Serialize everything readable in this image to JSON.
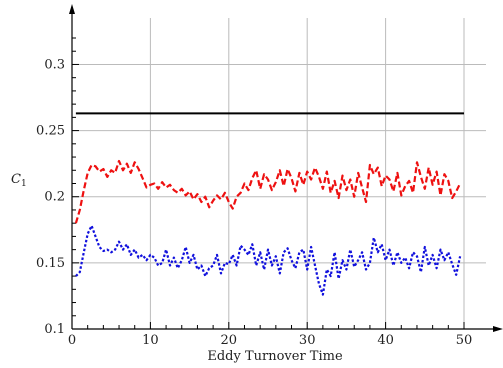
{
  "chart_data": {
    "type": "line",
    "xlabel": "Eddy Turnover Time",
    "ylabel": "C",
    "ylabel_subscript": "1",
    "xlim": [
      0,
      50
    ],
    "ylim": [
      0.1,
      0.32
    ],
    "xticks": [
      0,
      10,
      20,
      30,
      40,
      50
    ],
    "xtick_labels": [
      "0",
      "10",
      "20",
      "30",
      "40",
      "50"
    ],
    "yticks": [
      0.1,
      0.15,
      0.2,
      0.25,
      0.3
    ],
    "ytick_labels": [
      "0.1",
      "0.15",
      "0.2",
      "0.25",
      "0.3"
    ],
    "grid": true,
    "colors": {
      "black": "#000000",
      "red": "#ee1111",
      "blue": "#1111dd",
      "grid": "#bbbbbb"
    },
    "series": [
      {
        "style": "solid",
        "color": "black",
        "x": [
          0.5,
          50
        ],
        "y": [
          0.263,
          0.263
        ]
      },
      {
        "style": "dashed",
        "color": "red",
        "x": [
          0.5,
          1,
          1.5,
          2,
          2.5,
          3,
          3.5,
          4,
          4.5,
          5,
          5.5,
          6,
          6.5,
          7,
          7.5,
          8,
          8.5,
          9,
          9.5,
          10,
          10.5,
          11,
          11.5,
          12,
          12.5,
          13,
          13.5,
          14,
          14.5,
          15,
          15.5,
          16,
          16.5,
          17,
          17.5,
          18,
          18.5,
          19,
          19.5,
          20,
          20.5,
          21,
          21.5,
          22,
          22.5,
          23,
          23.5,
          24,
          24.5,
          25,
          25.5,
          26,
          26.5,
          27,
          27.5,
          28,
          28.5,
          29,
          29.5,
          30,
          30.5,
          31,
          31.5,
          32,
          32.5,
          33,
          33.5,
          34,
          34.5,
          35,
          35.5,
          36,
          36.5,
          37,
          37.5,
          38,
          38.5,
          39,
          39.5,
          40,
          40.5,
          41,
          41.5,
          42,
          42.5,
          43,
          43.5,
          44,
          44.5,
          45,
          45.5,
          46,
          46.5,
          47,
          47.5,
          48,
          48.5,
          49,
          49.5
        ],
        "y": [
          0.18,
          0.19,
          0.205,
          0.218,
          0.224,
          0.223,
          0.219,
          0.221,
          0.215,
          0.22,
          0.218,
          0.227,
          0.22,
          0.225,
          0.218,
          0.226,
          0.221,
          0.214,
          0.207,
          0.209,
          0.21,
          0.206,
          0.211,
          0.207,
          0.209,
          0.205,
          0.203,
          0.206,
          0.201,
          0.204,
          0.198,
          0.202,
          0.196,
          0.2,
          0.192,
          0.197,
          0.201,
          0.198,
          0.203,
          0.196,
          0.191,
          0.2,
          0.203,
          0.21,
          0.205,
          0.214,
          0.22,
          0.206,
          0.217,
          0.213,
          0.205,
          0.211,
          0.22,
          0.208,
          0.221,
          0.214,
          0.204,
          0.218,
          0.209,
          0.219,
          0.213,
          0.222,
          0.215,
          0.206,
          0.219,
          0.203,
          0.212,
          0.199,
          0.216,
          0.205,
          0.213,
          0.2,
          0.218,
          0.207,
          0.196,
          0.224,
          0.217,
          0.222,
          0.208,
          0.216,
          0.213,
          0.204,
          0.218,
          0.201,
          0.208,
          0.212,
          0.203,
          0.226,
          0.215,
          0.206,
          0.222,
          0.209,
          0.219,
          0.201,
          0.217,
          0.212,
          0.199,
          0.204,
          0.21
        ]
      },
      {
        "style": "dotted",
        "color": "blue",
        "x": [
          0.5,
          1,
          1.5,
          2,
          2.5,
          3,
          3.5,
          4,
          4.5,
          5,
          5.5,
          6,
          6.5,
          7,
          7.5,
          8,
          8.5,
          9,
          9.5,
          10,
          10.5,
          11,
          11.5,
          12,
          12.5,
          13,
          13.5,
          14,
          14.5,
          15,
          15.5,
          16,
          16.5,
          17,
          17.5,
          18,
          18.5,
          19,
          19.5,
          20,
          20.5,
          21,
          21.5,
          22,
          22.5,
          23,
          23.5,
          24,
          24.5,
          25,
          25.5,
          26,
          26.5,
          27,
          27.5,
          28,
          28.5,
          29,
          29.5,
          30,
          30.5,
          31,
          31.5,
          32,
          32.5,
          33,
          33.5,
          34,
          34.5,
          35,
          35.5,
          36,
          36.5,
          37,
          37.5,
          38,
          38.5,
          39,
          39.5,
          40,
          40.5,
          41,
          41.5,
          42,
          42.5,
          43,
          43.5,
          44,
          44.5,
          45,
          45.5,
          46,
          46.5,
          47,
          47.5,
          48,
          48.5,
          49,
          49.5
        ],
        "y": [
          0.14,
          0.143,
          0.158,
          0.172,
          0.178,
          0.17,
          0.162,
          0.159,
          0.16,
          0.158,
          0.16,
          0.166,
          0.16,
          0.164,
          0.156,
          0.16,
          0.154,
          0.156,
          0.152,
          0.156,
          0.154,
          0.148,
          0.15,
          0.16,
          0.148,
          0.154,
          0.146,
          0.152,
          0.162,
          0.15,
          0.156,
          0.145,
          0.148,
          0.14,
          0.146,
          0.148,
          0.156,
          0.142,
          0.15,
          0.149,
          0.156,
          0.148,
          0.163,
          0.16,
          0.156,
          0.164,
          0.148,
          0.158,
          0.145,
          0.16,
          0.148,
          0.155,
          0.142,
          0.158,
          0.161,
          0.152,
          0.146,
          0.158,
          0.16,
          0.145,
          0.162,
          0.148,
          0.134,
          0.126,
          0.145,
          0.14,
          0.158,
          0.138,
          0.152,
          0.145,
          0.16,
          0.147,
          0.152,
          0.158,
          0.145,
          0.15,
          0.169,
          0.158,
          0.164,
          0.152,
          0.16,
          0.148,
          0.158,
          0.15,
          0.154,
          0.146,
          0.158,
          0.155,
          0.143,
          0.162,
          0.148,
          0.156,
          0.146,
          0.16,
          0.152,
          0.158,
          0.149,
          0.141,
          0.155
        ]
      }
    ]
  }
}
